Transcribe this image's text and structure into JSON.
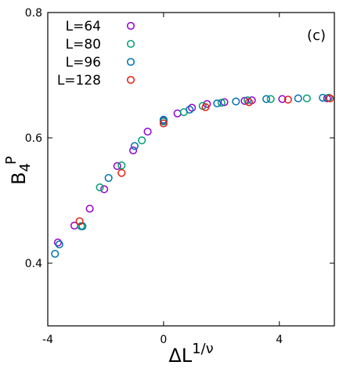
{
  "chart_data": {
    "type": "scatter",
    "panel_label": "(c)",
    "xlabel": {
      "main": "ΔL",
      "superscript": "1/ν"
    },
    "ylabel": {
      "main": "B",
      "subscript": "4",
      "superscript": "P"
    },
    "xlim": [
      -4,
      5.9
    ],
    "ylim": [
      0.3,
      0.8
    ],
    "x_ticks": [
      {
        "value": -4,
        "label": "-4"
      },
      {
        "value": 0,
        "label": "0"
      },
      {
        "value": 4,
        "label": "4"
      }
    ],
    "y_ticks": [
      {
        "value": 0.4,
        "label": "0.4"
      },
      {
        "value": 0.6,
        "label": "0.6"
      },
      {
        "value": 0.8,
        "label": "0.8"
      }
    ],
    "grid": false,
    "legend_position": "top-left",
    "series": [
      {
        "name": "L=64",
        "color": "#9400d3",
        "points": [
          [
            -3.65,
            0.433
          ],
          [
            -3.08,
            0.46
          ],
          [
            -2.55,
            0.487
          ],
          [
            -2.05,
            0.518
          ],
          [
            -1.6,
            0.555
          ],
          [
            -1.05,
            0.58
          ],
          [
            -0.55,
            0.61
          ],
          [
            0.0,
            0.628
          ],
          [
            0.48,
            0.639
          ],
          [
            0.98,
            0.648
          ],
          [
            1.5,
            0.654
          ],
          [
            2.1,
            0.657
          ],
          [
            2.8,
            0.659
          ],
          [
            3.05,
            0.66
          ],
          [
            4.1,
            0.662
          ],
          [
            5.65,
            0.663
          ]
        ]
      },
      {
        "name": "L=80",
        "color": "#009e73",
        "points": [
          [
            -2.85,
            0.459
          ],
          [
            -2.2,
            0.521
          ],
          [
            -1.45,
            0.556
          ],
          [
            -0.75,
            0.596
          ],
          [
            0.0,
            0.626
          ],
          [
            0.7,
            0.641
          ],
          [
            1.35,
            0.651
          ],
          [
            2.0,
            0.656
          ],
          [
            2.9,
            0.66
          ],
          [
            3.7,
            0.662
          ],
          [
            4.95,
            0.663
          ],
          [
            5.7,
            0.664
          ]
        ]
      },
      {
        "name": "L=96",
        "color": "#0072b2",
        "points": [
          [
            -3.75,
            0.415
          ],
          [
            -3.6,
            0.43
          ],
          [
            -2.8,
            0.459
          ],
          [
            -1.9,
            0.536
          ],
          [
            -1.0,
            0.587
          ],
          [
            0.0,
            0.629
          ],
          [
            0.9,
            0.645
          ],
          [
            1.85,
            0.655
          ],
          [
            2.5,
            0.658
          ],
          [
            3.55,
            0.662
          ],
          [
            4.65,
            0.663
          ],
          [
            5.5,
            0.664
          ]
        ]
      },
      {
        "name": "L=128",
        "color": "#e51e10",
        "points": [
          [
            -2.9,
            0.467
          ],
          [
            -1.45,
            0.544
          ],
          [
            0.0,
            0.623
          ],
          [
            1.45,
            0.649
          ],
          [
            2.95,
            0.657
          ],
          [
            4.3,
            0.661
          ],
          [
            5.75,
            0.663
          ]
        ]
      }
    ]
  }
}
